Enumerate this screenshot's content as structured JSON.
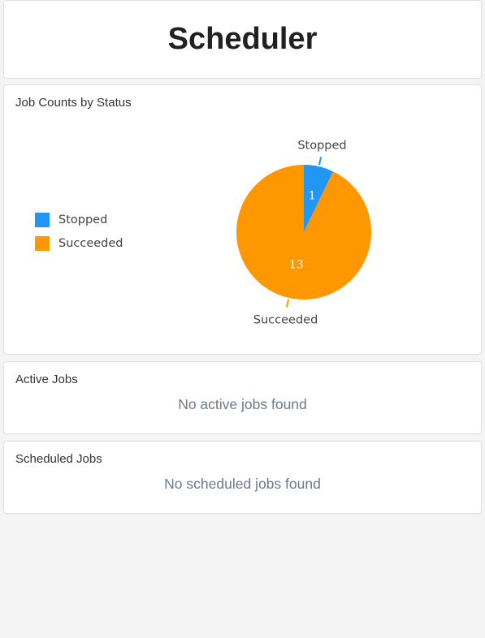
{
  "header": {
    "title": "Scheduler"
  },
  "job_counts": {
    "title": "Job Counts by Status",
    "legend": [
      {
        "label": "Stopped",
        "color": "#2196f3"
      },
      {
        "label": "Succeeded",
        "color": "#ff9800"
      }
    ]
  },
  "chart_data": {
    "type": "pie",
    "categories": [
      "Stopped",
      "Succeeded"
    ],
    "values": [
      1,
      13
    ],
    "colors": [
      "#2196f3",
      "#ff9800"
    ],
    "slice_labels": [
      "1",
      "13"
    ],
    "legend_position": "left"
  },
  "active_jobs": {
    "title": "Active Jobs",
    "empty_message": "No active jobs found"
  },
  "scheduled_jobs": {
    "title": "Scheduled Jobs",
    "empty_message": "No scheduled jobs found"
  }
}
